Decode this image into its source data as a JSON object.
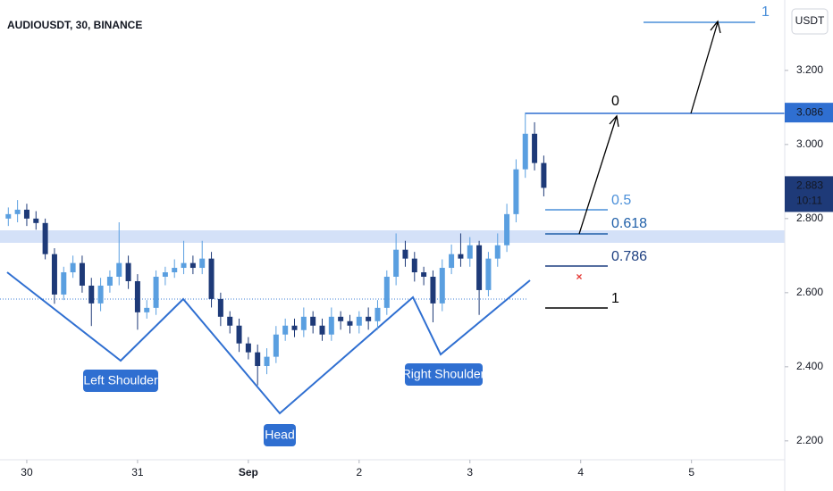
{
  "chart_data": {
    "type": "candlestick",
    "title": "AUDIOUSDT, 30, BINANCE",
    "currency": "USDT",
    "up_color": "#5a9fe0",
    "down_color": "#1e3a78",
    "x": [
      -2,
      -1,
      0,
      1,
      2,
      3,
      4,
      5,
      6,
      7,
      8,
      9,
      10,
      11,
      12,
      13,
      14,
      15,
      16,
      17,
      18,
      19,
      20,
      21,
      22,
      23,
      24,
      25,
      26,
      27,
      28,
      29,
      30,
      31,
      32,
      33,
      34,
      35,
      36,
      37,
      38,
      39,
      40,
      41,
      42,
      43,
      44,
      45,
      46,
      47,
      48,
      49,
      50,
      51,
      52,
      53,
      54,
      55,
      56
    ],
    "open": [
      2.8,
      2.812,
      2.824,
      2.8,
      2.788,
      2.704,
      2.595,
      2.655,
      2.68,
      2.619,
      2.571,
      2.619,
      2.643,
      2.68,
      2.631,
      2.547,
      2.559,
      2.643,
      2.655,
      2.667,
      2.68,
      2.667,
      2.692,
      2.583,
      2.535,
      2.511,
      2.463,
      2.439,
      2.402,
      2.427,
      2.487,
      2.511,
      2.499,
      2.535,
      2.511,
      2.487,
      2.535,
      2.523,
      2.511,
      2.535,
      2.523,
      2.559,
      2.643,
      2.716,
      2.692,
      2.655,
      2.643,
      2.571,
      2.667,
      2.704,
      2.692,
      2.728,
      2.607,
      2.692,
      2.728,
      2.812,
      2.933,
      3.029,
      2.95
    ],
    "high": [
      2.83,
      2.85,
      2.84,
      2.82,
      2.8,
      2.72,
      2.67,
      2.7,
      2.7,
      2.64,
      2.64,
      2.66,
      2.79,
      2.7,
      2.65,
      2.58,
      2.66,
      2.67,
      2.69,
      2.74,
      2.7,
      2.74,
      2.71,
      2.6,
      2.55,
      2.53,
      2.48,
      2.46,
      2.45,
      2.51,
      2.53,
      2.53,
      2.56,
      2.55,
      2.53,
      2.56,
      2.55,
      2.54,
      2.55,
      2.56,
      2.58,
      2.66,
      2.76,
      2.74,
      2.71,
      2.67,
      2.66,
      2.69,
      2.73,
      2.76,
      2.75,
      2.74,
      2.71,
      2.76,
      2.84,
      2.96,
      3.086,
      3.06,
      2.97
    ],
    "low": [
      2.78,
      2.79,
      2.78,
      2.77,
      2.69,
      2.57,
      2.58,
      2.64,
      2.6,
      2.51,
      2.55,
      2.6,
      2.62,
      2.61,
      2.5,
      2.53,
      2.54,
      2.62,
      2.64,
      2.65,
      2.65,
      2.65,
      2.56,
      2.51,
      2.49,
      2.44,
      2.42,
      2.35,
      2.38,
      2.41,
      2.47,
      2.48,
      2.48,
      2.49,
      2.47,
      2.47,
      2.5,
      2.49,
      2.49,
      2.5,
      2.5,
      2.54,
      2.62,
      2.67,
      2.63,
      2.62,
      2.52,
      2.55,
      2.65,
      2.67,
      2.67,
      2.54,
      2.59,
      2.67,
      2.71,
      2.79,
      2.91,
      2.93,
      2.86
    ],
    "close": [
      2.812,
      2.824,
      2.8,
      2.788,
      2.704,
      2.595,
      2.655,
      2.68,
      2.619,
      2.571,
      2.619,
      2.643,
      2.68,
      2.631,
      2.547,
      2.559,
      2.643,
      2.655,
      2.667,
      2.68,
      2.667,
      2.692,
      2.583,
      2.535,
      2.511,
      2.463,
      2.439,
      2.402,
      2.427,
      2.487,
      2.511,
      2.499,
      2.535,
      2.511,
      2.487,
      2.535,
      2.523,
      2.511,
      2.535,
      2.523,
      2.559,
      2.643,
      2.716,
      2.692,
      2.655,
      2.643,
      2.571,
      2.667,
      2.704,
      2.692,
      2.728,
      2.607,
      2.692,
      2.728,
      2.812,
      2.933,
      3.029,
      2.95,
      2.883
    ],
    "xlim": [
      -2.9,
      82.1
    ],
    "xticks": [
      {
        "value": 0,
        "label": "30"
      },
      {
        "value": 12,
        "label": "31"
      },
      {
        "value": 24,
        "label": "Sep"
      },
      {
        "value": 36,
        "label": "2"
      },
      {
        "value": 48,
        "label": "3"
      },
      {
        "value": 60,
        "label": "4"
      },
      {
        "value": 72,
        "label": "5"
      }
    ],
    "ylim": [
      2.149,
      3.39
    ],
    "yticks": [
      {
        "value": 3.2,
        "label": "3.200"
      },
      {
        "value": 3.0,
        "label": "3.000"
      },
      {
        "value": 2.8,
        "label": "2.800"
      },
      {
        "value": 2.6,
        "label": "2.600"
      },
      {
        "value": 2.4,
        "label": "2.400"
      },
      {
        "value": 2.2,
        "label": "2.200"
      }
    ],
    "grid": false,
    "high_price": {
      "value": 3.086,
      "label": "3.086"
    },
    "last_price": {
      "value": 2.883,
      "label": "2.883"
    },
    "countdown": "10:11",
    "pattern_labels": [
      "Left Shoulder",
      "Head",
      "Right Shoulder"
    ],
    "fib_levels": [
      0,
      0.5,
      0.618,
      0.786,
      1
    ],
    "target_level": 1
  }
}
